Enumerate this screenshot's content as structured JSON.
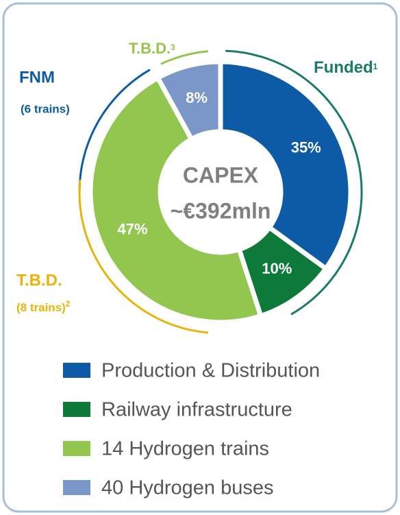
{
  "chart_data": {
    "type": "donut",
    "center_title": "CAPEX",
    "center_value": "~€392mln",
    "categories": [
      "Production & Distribution",
      "Railway infrastructure",
      "14 Hydrogen trains",
      "40 Hydrogen buses"
    ],
    "values": [
      35,
      10,
      47,
      8
    ],
    "value_labels": [
      "35%",
      "10%",
      "47%",
      "8%"
    ],
    "colors": [
      "#0d5aa7",
      "#0e7a3a",
      "#92c64e",
      "#7b96c8"
    ],
    "annotations": [
      {
        "text": "Funded",
        "note": "1"
      },
      {
        "text": "T.B.D.",
        "note": "3"
      },
      {
        "text": "FNM",
        "sub": "(6 trains)"
      },
      {
        "text": "T.B.D.",
        "sub": "(8 trains)",
        "note": "2"
      }
    ]
  }
}
